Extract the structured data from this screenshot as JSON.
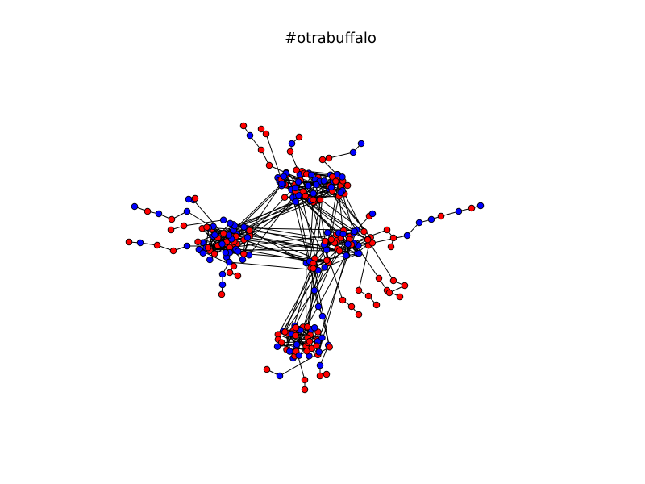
{
  "figure": {
    "title": "#otrabuffalo"
  },
  "graph": {
    "node_colors": {
      "red": "#ff0000",
      "blue": "#0000ff"
    },
    "edge_color": "#000000",
    "node_outline": "#000000",
    "background": "#ffffff"
  }
}
